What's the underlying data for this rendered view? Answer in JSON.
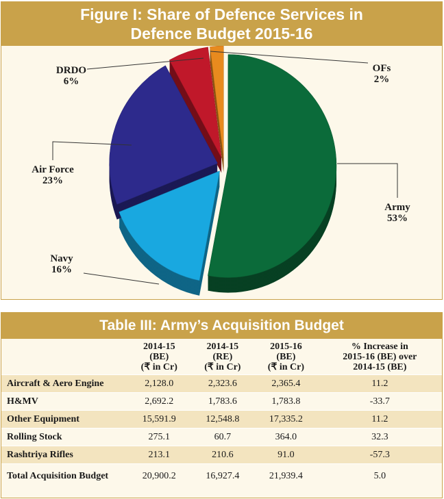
{
  "figure": {
    "title_line1": "Figure I: Share of Defence Services in",
    "title_line2": "Defence Budget 2015-16"
  },
  "chart_data": {
    "type": "pie",
    "categories": [
      "Army",
      "Navy",
      "Air Force",
      "DRDO",
      "OFs"
    ],
    "values": [
      53,
      16,
      23,
      6,
      2
    ],
    "labels": [
      "53%",
      "16%",
      "23%",
      "6%",
      "2%"
    ],
    "colors": [
      "#0b6b3a",
      "#19a8e0",
      "#2d2a8c",
      "#c0182a",
      "#e88a1e"
    ],
    "title": "Figure I: Share of Defence Services in Defence Budget 2015-16"
  },
  "table": {
    "title": "Table III: Army’s Acquisition Budget",
    "headers": [
      [
        "",
        "",
        ""
      ],
      [
        "2014-15",
        "(BE)",
        "(₹ in Cr)"
      ],
      [
        "2014-15",
        "(RE)",
        "(₹ in Cr)"
      ],
      [
        "2015-16",
        "(BE)",
        "(₹ in Cr)"
      ],
      [
        "% Increase in",
        "2015-16 (BE) over",
        "2014-15 (BE)"
      ]
    ],
    "rows": [
      [
        "Aircraft & Aero Engine",
        "2,128.0",
        "2,323.6",
        "2,365.4",
        "11.2"
      ],
      [
        "H&MV",
        "2,692.2",
        "1,783.6",
        "1,783.8",
        "-33.7"
      ],
      [
        "Other Equipment",
        "15,591.9",
        "12,548.8",
        "17,335.2",
        "11.2"
      ],
      [
        "Rolling Stock",
        "275.1",
        "60.7",
        "364.0",
        "32.3"
      ],
      [
        "Rashtriya Rifles",
        "213.1",
        "210.6",
        "91.0",
        "-57.3"
      ],
      [
        "Total Acquisition Budget",
        "20,900.2",
        "16,927.4",
        "21,939.4",
        "5.0"
      ]
    ]
  }
}
